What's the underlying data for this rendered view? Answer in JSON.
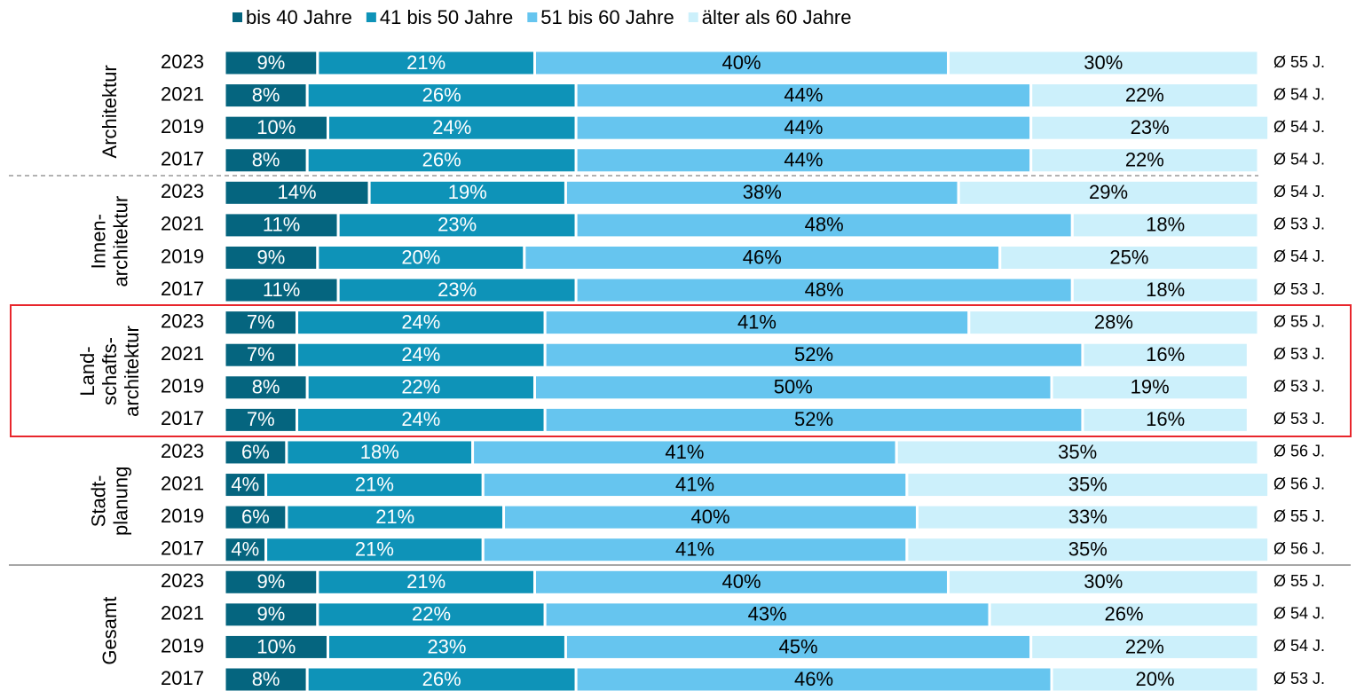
{
  "chart_data": {
    "type": "bar",
    "orientation": "horizontal",
    "stacked": true,
    "xlim": [
      0,
      100
    ],
    "group_labels": [
      [
        "Architektur"
      ],
      [
        "Innen-",
        "architektur"
      ],
      [
        "Land-",
        "schafts-",
        "architektur"
      ],
      [
        "Stadt-",
        "planung"
      ],
      [
        "Gesamt"
      ]
    ],
    "categories": [
      "2023",
      "2021",
      "2019",
      "2017",
      "2023",
      "2021",
      "2019",
      "2017",
      "2023",
      "2021",
      "2019",
      "2017",
      "2023",
      "2021",
      "2019",
      "2017",
      "2023",
      "2021",
      "2019",
      "2017"
    ],
    "annotations": [
      "Ø 55 J.",
      "Ø 54 J.",
      "Ø 54 J.",
      "Ø 54 J.",
      "Ø 54 J.",
      "Ø 53 J.",
      "Ø 54 J.",
      "Ø 53 J.",
      "Ø 55 J.",
      "Ø 53 J.",
      "Ø 53 J.",
      "Ø 53 J.",
      "Ø 56 J.",
      "Ø 56 J.",
      "Ø 55 J.",
      "Ø 56 J.",
      "Ø 55 J.",
      "Ø 54 J.",
      "Ø 54 J.",
      "Ø 53 J."
    ],
    "series": [
      {
        "name": "bis 40 Jahre",
        "color": "#05657f",
        "label_color": "#ffffff",
        "values": [
          9,
          8,
          10,
          8,
          14,
          11,
          9,
          11,
          7,
          7,
          8,
          7,
          6,
          4,
          6,
          4,
          9,
          9,
          10,
          8
        ],
        "value_labels": [
          "9%",
          "8%",
          "10%",
          "8%",
          "14%",
          "11%",
          "9%",
          "11%",
          "7%",
          "7%",
          "8%",
          "7%",
          "6%",
          "4%",
          "6%",
          "4%",
          "9%",
          "9%",
          "10%",
          "8%"
        ]
      },
      {
        "name": "41 bis 50 Jahre",
        "color": "#0e93b8",
        "label_color": "#ffffff",
        "values": [
          21,
          26,
          24,
          26,
          19,
          23,
          20,
          23,
          24,
          24,
          22,
          24,
          18,
          21,
          21,
          21,
          21,
          22,
          23,
          26
        ],
        "value_labels": [
          "21%",
          "26%",
          "24%",
          "26%",
          "19%",
          "23%",
          "20%",
          "23%",
          "24%",
          "24%",
          "22%",
          "24%",
          "18%",
          "21%",
          "21%",
          "21%",
          "21%",
          "22%",
          "23%",
          "26%"
        ]
      },
      {
        "name": "51 bis 60 Jahre",
        "color": "#66c5ef",
        "label_color": "#000000",
        "values": [
          40,
          44,
          44,
          44,
          38,
          48,
          46,
          48,
          41,
          52,
          50,
          52,
          41,
          41,
          40,
          41,
          40,
          43,
          45,
          46
        ],
        "value_labels": [
          "40%",
          "44%",
          "44%",
          "44%",
          "38%",
          "48%",
          "46%",
          "48%",
          "41%",
          "52%",
          "50%",
          "52%",
          "41%",
          "41%",
          "40%",
          "41%",
          "40%",
          "43%",
          "45%",
          "46%"
        ]
      },
      {
        "name": "älter als 60 Jahre",
        "color": "#ccf0fb",
        "label_color": "#000000",
        "values": [
          30,
          22,
          23,
          22,
          29,
          18,
          25,
          18,
          28,
          16,
          19,
          16,
          35,
          35,
          33,
          35,
          30,
          26,
          22,
          20
        ],
        "value_labels": [
          "30%",
          "22%",
          "23%",
          "22%",
          "29%",
          "18%",
          "25%",
          "18%",
          "28%",
          "16%",
          "19%",
          "16%",
          "35%",
          "35%",
          "33%",
          "35%",
          "30%",
          "26%",
          "22%",
          "20%"
        ]
      }
    ]
  }
}
